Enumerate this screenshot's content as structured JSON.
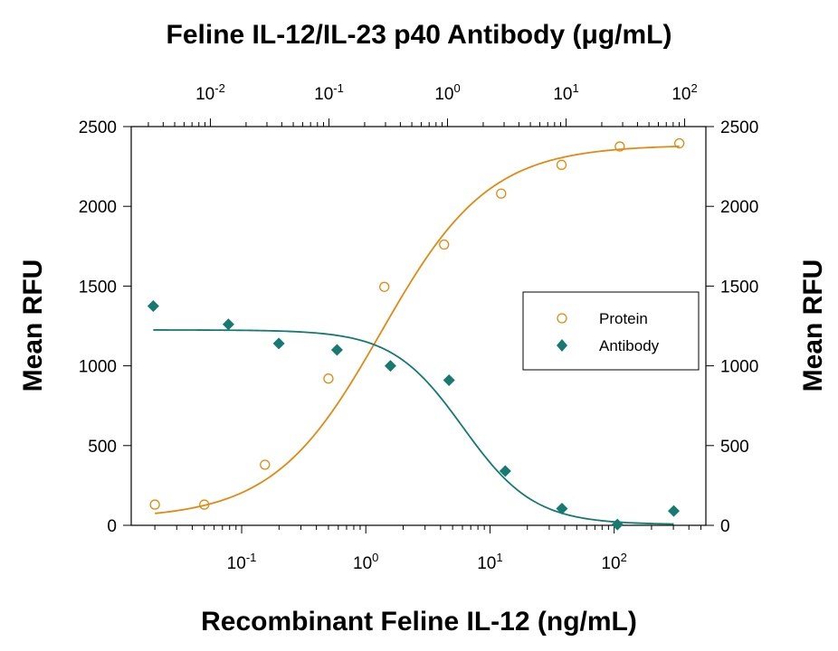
{
  "chart_data": {
    "type": "scatter",
    "title": "Feline IL-12/IL-23 p40 Antibody (μg/mL)",
    "xlabel": "Recombinant Feline IL-12 (ng/mL)",
    "ylabel": "Mean RFU",
    "ylabel_right": "Mean RFU",
    "xscale": "log",
    "xlim": [
      0.0129,
      548
    ],
    "ylim": [
      0,
      2500
    ],
    "x_ticks": [
      "0.1",
      "1",
      "10",
      "100"
    ],
    "x2_scale": "log",
    "x2_lim": [
      0.00215,
      151
    ],
    "x2_ticks": [
      "0.01",
      "0.1",
      "1",
      "10",
      "100"
    ],
    "y_ticks": [
      0,
      500,
      1000,
      1500,
      2000,
      2500
    ],
    "grid": false,
    "legend_position": "right-center",
    "colors": {
      "protein": "#e08a14",
      "antibody": "#167a72"
    },
    "series": [
      {
        "name": "Protein",
        "marker": "open-circle",
        "axis": "bottom",
        "points": [
          [
            0.02,
            130
          ],
          [
            0.05,
            130
          ],
          [
            0.154,
            380
          ],
          [
            0.5,
            920
          ],
          [
            1.41,
            1495
          ],
          [
            4.27,
            1760
          ],
          [
            12.3,
            2080
          ],
          [
            37.7,
            2260
          ],
          [
            111,
            2375
          ],
          [
            335,
            2395
          ]
        ],
        "fit": {
          "bottom": 40,
          "top": 2385,
          "ec50": 1.33,
          "hill": 1.0
        }
      },
      {
        "name": "Antibody",
        "marker": "filled-diamond",
        "axis": "top",
        "points": [
          [
            0.0033,
            1375
          ],
          [
            0.0142,
            1260
          ],
          [
            0.0378,
            1140
          ],
          [
            0.117,
            1100
          ],
          [
            0.33,
            1000
          ],
          [
            1.03,
            910
          ],
          [
            3.07,
            340
          ],
          [
            9.23,
            105
          ],
          [
            27.1,
            5
          ],
          [
            80.9,
            90
          ]
        ],
        "fit": {
          "bottom": 5,
          "top": 1225,
          "ec50": 1.35,
          "hill": 1.45
        }
      }
    ]
  }
}
